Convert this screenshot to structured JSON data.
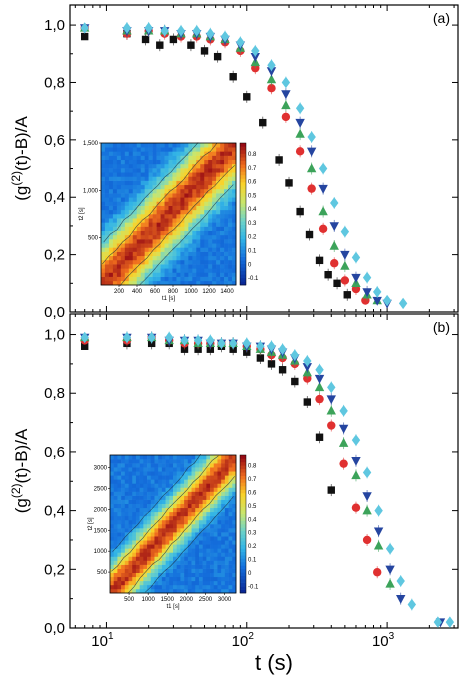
{
  "chart_data": [
    {
      "panel_label": "(a)",
      "type": "scatter",
      "ylabel": "(g(2)(t)-B)/A",
      "ylabel_parts": {
        "pre": "(g",
        "sup": "(2)",
        "post": "(t)-B)/A"
      },
      "yticks": [
        "0,0",
        "0,2",
        "0,4",
        "0,6",
        "0,8",
        "1,0"
      ],
      "ylim": [
        0,
        1.07
      ],
      "xscale": "log",
      "xlim": [
        5.5,
        3200
      ],
      "grid": false,
      "series": [
        {
          "color": "#111111",
          "marker": "square",
          "x": [
            7,
            14,
            19,
            24,
            30,
            40,
            50,
            62,
            80,
            100,
            130,
            170,
            200,
            240,
            280,
            330,
            380,
            440,
            520
          ],
          "y": [
            0.96,
            0.97,
            0.95,
            0.93,
            0.95,
            0.93,
            0.91,
            0.89,
            0.82,
            0.75,
            0.66,
            0.53,
            0.45,
            0.35,
            0.27,
            0.18,
            0.13,
            0.1,
            0.06
          ]
        },
        {
          "color": "#e03030",
          "marker": "circle",
          "x": [
            7,
            14,
            20,
            26,
            34,
            44,
            55,
            70,
            90,
            115,
            150,
            190,
            240,
            290,
            350,
            420,
            500,
            600,
            700
          ],
          "y": [
            0.99,
            0.97,
            0.98,
            0.97,
            0.96,
            0.96,
            0.95,
            0.94,
            0.91,
            0.85,
            0.78,
            0.68,
            0.56,
            0.43,
            0.29,
            0.17,
            0.11,
            0.08,
            0.04
          ]
        },
        {
          "color": "#3ca35a",
          "marker": "triangle-up",
          "x": [
            7,
            14,
            20,
            26,
            34,
            44,
            55,
            70,
            90,
            115,
            150,
            190,
            240,
            290,
            350,
            420,
            500,
            600,
            720,
            850
          ],
          "y": [
            0.99,
            0.98,
            0.98,
            0.98,
            0.97,
            0.97,
            0.96,
            0.95,
            0.92,
            0.87,
            0.81,
            0.72,
            0.62,
            0.5,
            0.35,
            0.23,
            0.16,
            0.1,
            0.06,
            0.04
          ]
        },
        {
          "color": "#2545a0",
          "marker": "triangle-down",
          "x": [
            7,
            14,
            20,
            26,
            34,
            44,
            55,
            70,
            90,
            115,
            150,
            190,
            240,
            290,
            350,
            420,
            500,
            600,
            720,
            850,
            1000
          ],
          "y": [
            0.99,
            0.98,
            0.98,
            0.98,
            0.97,
            0.97,
            0.96,
            0.95,
            0.93,
            0.89,
            0.84,
            0.76,
            0.66,
            0.56,
            0.43,
            0.3,
            0.2,
            0.12,
            0.07,
            0.04,
            0.03
          ]
        },
        {
          "color": "#5fc7e0",
          "marker": "diamond",
          "x": [
            7,
            14,
            20,
            26,
            34,
            44,
            55,
            70,
            90,
            115,
            150,
            190,
            240,
            290,
            350,
            420,
            500,
            600,
            720,
            850,
            1000,
            1300
          ],
          "y": [
            0.99,
            0.99,
            0.99,
            0.98,
            0.98,
            0.98,
            0.97,
            0.96,
            0.94,
            0.91,
            0.86,
            0.8,
            0.71,
            0.61,
            0.5,
            0.38,
            0.28,
            0.19,
            0.12,
            0.07,
            0.04,
            0.03
          ]
        }
      ],
      "inset": {
        "type": "heatmap",
        "xlabel": "t1 [s]",
        "ylabel": "t2 [s]",
        "xticks": [
          "200",
          "400",
          "600",
          "800",
          "1000",
          "1200",
          "1400"
        ],
        "yticks": [
          "500",
          "1,000",
          "1,500"
        ],
        "xlim": [
          0,
          1500
        ],
        "ylim": [
          0,
          1500
        ],
        "colorbar_ticks": [
          "-0.1",
          "0",
          "0.1",
          "0.2",
          "0.3",
          "0.4",
          "0.5",
          "0.6",
          "0.7",
          "0.8"
        ],
        "colorbar_range": [
          -0.15,
          0.88
        ],
        "band_width": 500
      }
    },
    {
      "panel_label": "(b)",
      "type": "scatter",
      "ylabel": "(g(2)(t)-B)/A",
      "ylabel_parts": {
        "pre": "(g",
        "sup": "(2)",
        "post": "(t)-B)/A"
      },
      "xlabel": "t (s)",
      "xticks": [
        {
          "value": 10,
          "base": "10",
          "exp": "1"
        },
        {
          "value": 100,
          "base": "10",
          "exp": "2"
        },
        {
          "value": 1000,
          "base": "10",
          "exp": "3"
        }
      ],
      "yticks": [
        "0,0",
        "0,2",
        "0,4",
        "0,6",
        "0,8",
        "1,0"
      ],
      "ylim": [
        0,
        1.07
      ],
      "xscale": "log",
      "xlim": [
        5.5,
        3200
      ],
      "grid": false,
      "series": [
        {
          "color": "#111111",
          "marker": "square",
          "x": [
            7,
            14,
            21,
            28,
            36,
            45,
            55,
            66,
            80,
            100,
            125,
            150,
            180,
            220,
            270,
            330,
            400
          ],
          "y": [
            0.96,
            0.97,
            0.97,
            0.97,
            0.95,
            0.95,
            0.95,
            0.96,
            0.95,
            0.94,
            0.92,
            0.9,
            0.88,
            0.84,
            0.77,
            0.65,
            0.47
          ]
        },
        {
          "color": "#e03030",
          "marker": "circle",
          "x": [
            7,
            14,
            21,
            28,
            36,
            45,
            55,
            66,
            80,
            100,
            125,
            150,
            180,
            220,
            270,
            330,
            400,
            490,
            600,
            720,
            850
          ],
          "y": [
            0.98,
            0.98,
            0.99,
            0.98,
            0.97,
            0.97,
            0.97,
            0.97,
            0.97,
            0.96,
            0.95,
            0.93,
            0.92,
            0.9,
            0.85,
            0.78,
            0.69,
            0.56,
            0.41,
            0.3,
            0.19
          ]
        },
        {
          "color": "#3ca35a",
          "marker": "triangle-up",
          "x": [
            7,
            14,
            21,
            28,
            36,
            45,
            55,
            66,
            80,
            100,
            125,
            150,
            180,
            220,
            270,
            330,
            400,
            490,
            600,
            720,
            870,
            1050
          ],
          "y": [
            0.99,
            0.99,
            0.99,
            0.98,
            0.98,
            0.97,
            0.97,
            0.97,
            0.97,
            0.96,
            0.95,
            0.94,
            0.93,
            0.91,
            0.87,
            0.82,
            0.74,
            0.63,
            0.52,
            0.4,
            0.28,
            0.15
          ]
        },
        {
          "color": "#2545a0",
          "marker": "triangle-down",
          "x": [
            7,
            14,
            21,
            28,
            36,
            45,
            55,
            66,
            80,
            100,
            125,
            150,
            180,
            220,
            270,
            330,
            400,
            490,
            600,
            720,
            870,
            1050,
            1250,
            2400
          ],
          "y": [
            0.99,
            0.99,
            0.99,
            0.98,
            0.98,
            0.98,
            0.97,
            0.97,
            0.97,
            0.96,
            0.96,
            0.95,
            0.94,
            0.92,
            0.89,
            0.85,
            0.78,
            0.68,
            0.57,
            0.45,
            0.33,
            0.2,
            0.1,
            0.02
          ]
        },
        {
          "color": "#5fc7e0",
          "marker": "diamond",
          "x": [
            7,
            14,
            21,
            28,
            36,
            45,
            55,
            66,
            80,
            100,
            125,
            150,
            180,
            220,
            270,
            330,
            400,
            490,
            600,
            720,
            870,
            1050,
            1250,
            1500,
            2300,
            2800
          ],
          "y": [
            0.99,
            0.99,
            0.99,
            0.99,
            0.98,
            0.98,
            0.98,
            0.97,
            0.97,
            0.97,
            0.96,
            0.96,
            0.95,
            0.93,
            0.91,
            0.88,
            0.82,
            0.74,
            0.64,
            0.53,
            0.4,
            0.27,
            0.16,
            0.08,
            0.02,
            0.02
          ]
        }
      ],
      "inset": {
        "type": "heatmap",
        "xlabel": "t1 [s]",
        "ylabel": "t2 [s]",
        "xticks": [
          "500",
          "1000",
          "1500",
          "2000",
          "2500",
          "3000"
        ],
        "yticks": [
          "500",
          "1000",
          "1500",
          "2000",
          "2500",
          "3000"
        ],
        "xlim": [
          0,
          3300
        ],
        "ylim": [
          0,
          3300
        ],
        "colorbar_ticks": [
          "-0.1",
          "0",
          "0.1",
          "0.2",
          "0.3",
          "0.4",
          "0.5",
          "0.6",
          "0.7",
          "0.8"
        ],
        "colorbar_range": [
          -0.15,
          0.88
        ],
        "band_width": 800
      }
    }
  ]
}
